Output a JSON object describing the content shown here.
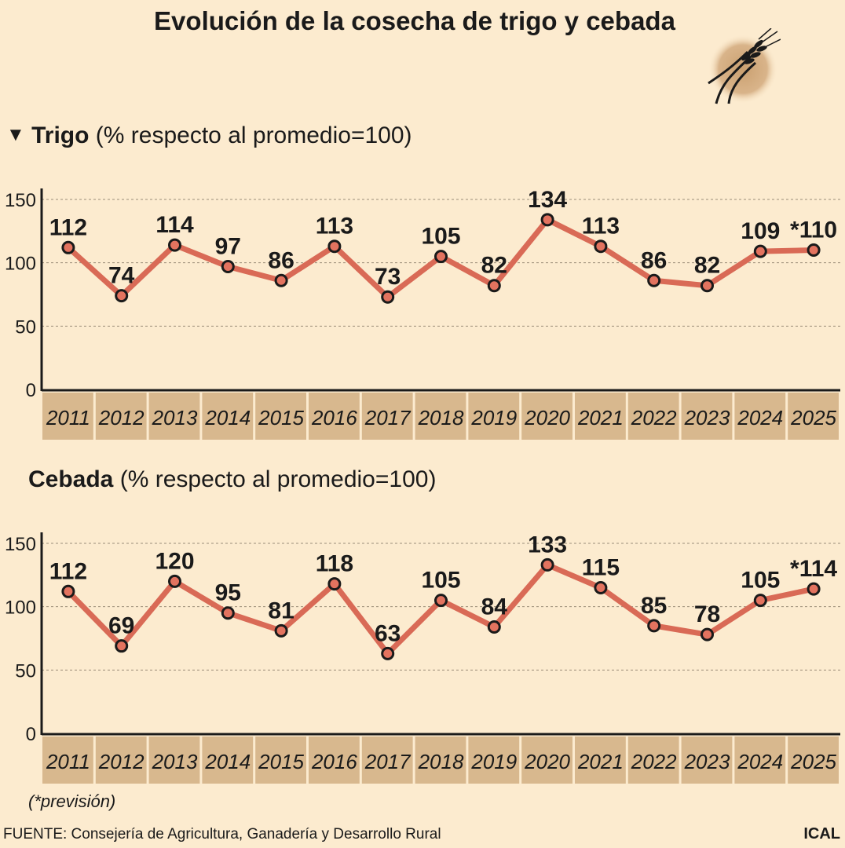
{
  "title": "Evolución de la cosecha de trigo y cebada",
  "footnote": "(*previsión)",
  "source": "FUENTE: Consejería de Agricultura, Ganadería y Desarrollo Rural",
  "credit": "ICAL",
  "colors": {
    "background": "#fcebcf",
    "line": "#d96a56",
    "year_band": "#d8b88e",
    "marker_fill": "#e3735f",
    "marker_stroke": "#1a1a1a"
  },
  "icon": "wheat-icon",
  "chart_data": [
    {
      "type": "line",
      "marker": "▼",
      "title": "Trigo",
      "subtitle": "(% respecto al promedio=100)",
      "categories": [
        "2011",
        "2012",
        "2013",
        "2014",
        "2015",
        "2016",
        "2017",
        "2018",
        "2019",
        "2020",
        "2021",
        "2022",
        "2023",
        "2024",
        "2025"
      ],
      "values": [
        112,
        74,
        114,
        97,
        86,
        113,
        73,
        105,
        82,
        134,
        113,
        86,
        82,
        109,
        110
      ],
      "value_labels": [
        "112",
        "74",
        "114",
        "97",
        "86",
        "113",
        "73",
        "105",
        "82",
        "134",
        "113",
        "86",
        "82",
        "109",
        "*110"
      ],
      "ylim": [
        0,
        150
      ],
      "yticks": [
        "0",
        "50",
        "100",
        "150"
      ],
      "grid": true
    },
    {
      "type": "line",
      "marker": "",
      "title": "Cebada",
      "subtitle": "(% respecto al promedio=100)",
      "categories": [
        "2011",
        "2012",
        "2013",
        "2014",
        "2015",
        "2016",
        "2017",
        "2018",
        "2019",
        "2020",
        "2021",
        "2022",
        "2023",
        "2024",
        "2025"
      ],
      "values": [
        112,
        69,
        120,
        95,
        81,
        118,
        63,
        105,
        84,
        133,
        115,
        85,
        78,
        105,
        114
      ],
      "value_labels": [
        "112",
        "69",
        "120",
        "95",
        "81",
        "118",
        "63",
        "105",
        "84",
        "133",
        "115",
        "85",
        "78",
        "105",
        "*114"
      ],
      "ylim": [
        0,
        150
      ],
      "yticks": [
        "0",
        "50",
        "100",
        "150"
      ],
      "grid": true
    }
  ]
}
